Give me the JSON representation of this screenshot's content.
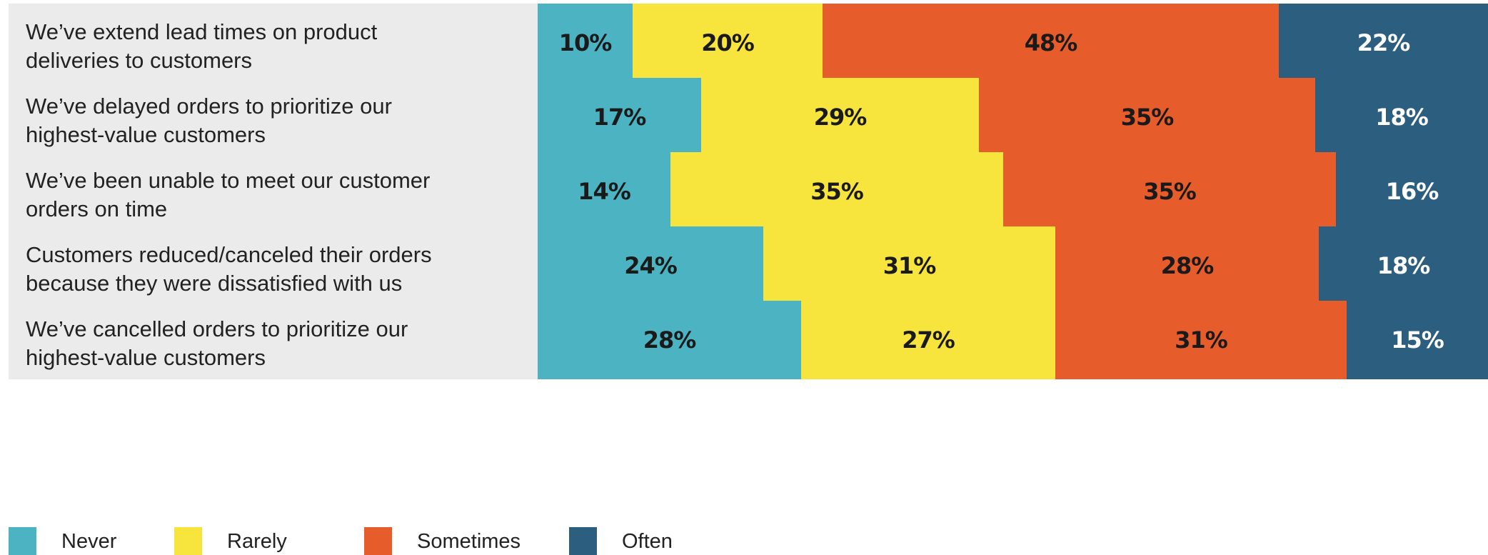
{
  "chart_data": {
    "type": "bar",
    "orientation": "horizontal",
    "stacked": true,
    "percent": true,
    "categories": [
      "We’ve extend lead times on product deliveries to customers",
      "We’ve delayed orders to prioritize our highest-value customers",
      "We’ve been unable to meet our customer orders on time",
      "Customers reduced/canceled their orders because they were dissatisfied with us",
      "We’ve cancelled orders to prioritize our highest-value customers"
    ],
    "label_lines": [
      [
        "We’ve extend lead times on product",
        "deliveries to customers"
      ],
      [
        "We’ve delayed orders to prioritize our",
        "highest-value customers"
      ],
      [
        "We’ve been unable to meet our customer",
        "orders on time"
      ],
      [
        "Customers reduced/canceled their orders",
        "because they were dissatisfied with us"
      ],
      [
        "We’ve cancelled orders to prioritize our",
        "highest-value customers"
      ]
    ],
    "series": [
      {
        "name": "Never",
        "color": "#4bb3c2",
        "text_color": "#1a1a1a",
        "values": [
          10,
          17,
          14,
          24,
          28
        ]
      },
      {
        "name": "Rarely",
        "color": "#f7e43c",
        "text_color": "#1a1a1a",
        "values": [
          20,
          29,
          35,
          31,
          27
        ]
      },
      {
        "name": "Sometimes",
        "color": "#e65c2a",
        "text_color": "#1a1a1a",
        "values": [
          48,
          35,
          35,
          28,
          31
        ]
      },
      {
        "name": "Often",
        "color": "#2c5f7f",
        "text_color": "#ffffff",
        "values": [
          22,
          18,
          16,
          18,
          15
        ]
      }
    ],
    "value_suffix": "%",
    "legend_position": "bottom-left",
    "grid": false
  }
}
